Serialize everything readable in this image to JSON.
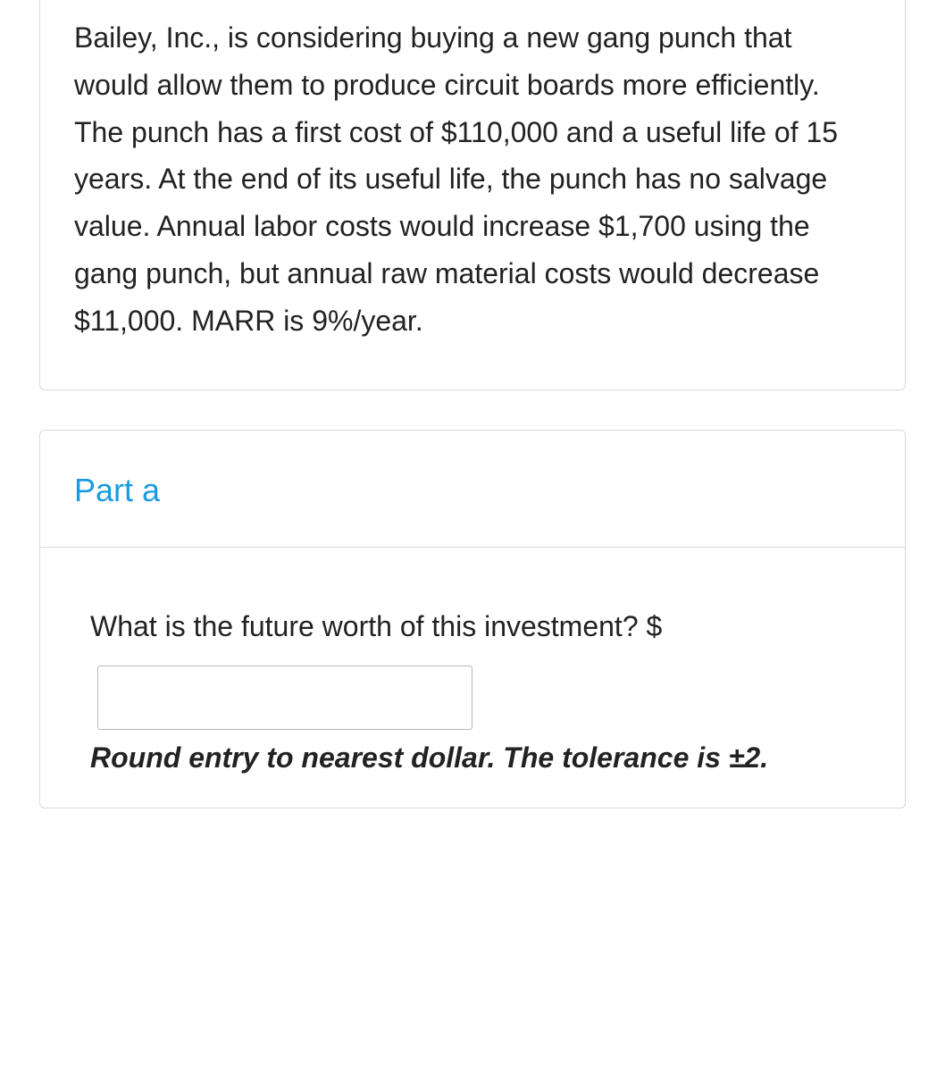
{
  "problem": {
    "text": "Bailey, Inc., is considering buying a new gang punch that would allow them to produce circuit boards more efficiently. The punch has a first cost of $110,000 and a useful life of 15 years. At the end of its useful life, the punch has no salvage value. Annual labor costs would increase $1,700 using the gang punch, but annual raw material costs would decrease $11,000. MARR is 9%/year."
  },
  "part": {
    "title": "Part a",
    "question_prefix": "What is the future worth of this investment? $",
    "answer_value": "",
    "instruction": "Round entry to nearest dollar. The tolerance is ±2."
  },
  "colors": {
    "border": "#d9d9d9",
    "text": "#222222",
    "accent": "#1a9be0",
    "input_border": "#b8b8b8",
    "background": "#ffffff"
  },
  "typography": {
    "body_fontsize": 32,
    "title_fontsize": 36,
    "instruction_style": "bold-italic"
  }
}
